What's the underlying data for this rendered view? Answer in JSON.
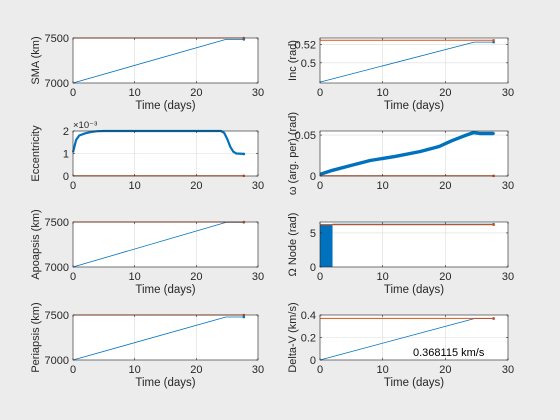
{
  "colors": {
    "figure_bg": "#ececec",
    "axes_bg": "#ffffff",
    "series_blue": "#0072bd",
    "limit_red": "#d95319",
    "grid": "#dcdcdc",
    "axis_line": "#262626"
  },
  "chart_data": [
    {
      "id": "sma",
      "type": "line",
      "xlabel": "Time (days)",
      "ylabel": "SMA (km)",
      "xlim": [
        0,
        30
      ],
      "ylim": [
        7000,
        7500
      ],
      "xticks": [
        0,
        10,
        20,
        30
      ],
      "yticks": [
        7000,
        7500
      ],
      "xtick_labels": [
        "0",
        "10",
        "20",
        "30"
      ],
      "ytick_labels": [
        "7000",
        "7500"
      ],
      "grid": true,
      "series": [
        {
          "style": "line",
          "color": "#0072bd",
          "x": [
            0,
            24.8,
            27.7
          ],
          "y": [
            7000,
            7485,
            7485
          ]
        },
        {
          "style": "hline",
          "color": "#d95319",
          "x": [
            0,
            27.7
          ],
          "y": [
            7500,
            7500
          ]
        }
      ]
    },
    {
      "id": "inc",
      "type": "line",
      "xlabel": "Time (days)",
      "ylabel": "Inc (rad)",
      "xlim": [
        0,
        30
      ],
      "ylim": [
        0.478,
        0.527
      ],
      "xticks": [
        0,
        10,
        20,
        30
      ],
      "yticks": [
        0.5,
        0.52
      ],
      "xtick_labels": [
        "0",
        "10",
        "20",
        "30"
      ],
      "ytick_labels": [
        "0.5",
        "0.52"
      ],
      "grid": true,
      "series": [
        {
          "style": "line",
          "color": "#0072bd",
          "x": [
            0,
            24.6,
            27.7
          ],
          "y": [
            0.479,
            0.5225,
            0.5225
          ]
        },
        {
          "style": "hline",
          "color": "#d95319",
          "x": [
            0,
            27.7
          ],
          "y": [
            0.5245,
            0.5245
          ]
        }
      ]
    },
    {
      "id": "ecc",
      "type": "line",
      "xlabel": "",
      "ylabel": "Eccentricity",
      "exponent_label": "×10⁻³",
      "xlim": [
        0,
        30
      ],
      "ylim": [
        0,
        0.002
      ],
      "xticks": [
        0,
        10,
        20,
        30
      ],
      "yticks": [
        0,
        0.001,
        0.002
      ],
      "xtick_labels": [
        "0",
        "10",
        "20",
        "30"
      ],
      "ytick_labels": [
        "0",
        "1",
        "2"
      ],
      "grid": true,
      "series": [
        {
          "style": "line",
          "color": "#0072bd",
          "width": 2.2,
          "x": [
            0,
            0.5,
            1,
            2,
            3,
            4,
            5,
            8,
            12,
            16,
            20,
            24,
            24.5,
            25,
            25.5,
            26,
            26.5,
            27.7
          ],
          "y": [
            0.00105,
            0.0016,
            0.0018,
            0.0019,
            0.00196,
            0.00199,
            0.002,
            0.002,
            0.002,
            0.002,
            0.002,
            0.002,
            0.00192,
            0.00165,
            0.0013,
            0.00108,
            0.001,
            0.00098
          ]
        },
        {
          "style": "hline",
          "color": "#d95319",
          "x": [
            0,
            27.7
          ],
          "y": [
            1e-05,
            1e-05
          ]
        }
      ]
    },
    {
      "id": "argper",
      "type": "line",
      "xlabel": "",
      "ylabel": "ω (arg. per) (rad)",
      "xlim": [
        0,
        30
      ],
      "ylim": [
        0,
        0.055
      ],
      "xticks": [
        0,
        10,
        20,
        30
      ],
      "yticks": [
        0,
        0.05
      ],
      "xtick_labels": [
        "0",
        "10",
        "20",
        "30"
      ],
      "ytick_labels": [
        "0",
        "0.05"
      ],
      "grid": true,
      "series": [
        {
          "style": "line",
          "color": "#0072bd",
          "width": 3.4,
          "x": [
            0,
            2,
            5,
            8,
            12,
            16,
            19,
            21,
            23,
            24.5,
            25.5,
            27.7
          ],
          "y": [
            0.002,
            0.007,
            0.013,
            0.019,
            0.024,
            0.03,
            0.036,
            0.043,
            0.049,
            0.053,
            0.052,
            0.052
          ]
        },
        {
          "style": "hline",
          "color": "#d95319",
          "x": [
            0,
            27.7
          ],
          "y": [
            0.0002,
            0.0002
          ]
        }
      ]
    },
    {
      "id": "apo",
      "type": "line",
      "xlabel": "Time (days)",
      "ylabel": "Apoapsis (km)",
      "xlim": [
        0,
        30
      ],
      "ylim": [
        7000,
        7500
      ],
      "xticks": [
        0,
        10,
        20,
        30
      ],
      "yticks": [
        7000,
        7500
      ],
      "xtick_labels": [
        "0",
        "10",
        "20",
        "30"
      ],
      "ytick_labels": [
        "7000",
        "7500"
      ],
      "grid": true,
      "series": [
        {
          "style": "line",
          "color": "#0072bd",
          "x": [
            0,
            24.8,
            27.7
          ],
          "y": [
            7000,
            7495,
            7497
          ]
        },
        {
          "style": "hline",
          "color": "#d95319",
          "x": [
            0,
            27.7
          ],
          "y": [
            7500,
            7500
          ]
        }
      ]
    },
    {
      "id": "node",
      "type": "line",
      "xlabel": "Time (days)",
      "ylabel": "Ω Node (rad)",
      "xlim": [
        0,
        30
      ],
      "ylim": [
        0,
        6.6
      ],
      "xticks": [
        0,
        10,
        20,
        30
      ],
      "yticks": [
        0,
        5
      ],
      "xtick_labels": [
        "0",
        "10",
        "20",
        "30"
      ],
      "ytick_labels": [
        "0",
        "5"
      ],
      "grid": true,
      "series": [
        {
          "style": "band",
          "color": "#0072bd",
          "x": [
            0,
            2
          ],
          "y": [
            0,
            6.28
          ]
        },
        {
          "style": "line",
          "color": "#0072bd",
          "x": [
            2,
            27.7
          ],
          "y": [
            6.28,
            6.28
          ]
        },
        {
          "style": "hline",
          "color": "#d95319",
          "x": [
            0,
            27.7
          ],
          "y": [
            6.2,
            6.2
          ]
        }
      ]
    },
    {
      "id": "peri",
      "type": "line",
      "xlabel": "Time (days)",
      "ylabel": "Periapsis (km)",
      "xlim": [
        0,
        30
      ],
      "ylim": [
        7000,
        7500
      ],
      "xticks": [
        0,
        10,
        20,
        30
      ],
      "yticks": [
        7000,
        7500
      ],
      "xtick_labels": [
        "0",
        "10",
        "20",
        "30"
      ],
      "ytick_labels": [
        "7000",
        "7500"
      ],
      "grid": true,
      "series": [
        {
          "style": "line",
          "color": "#0072bd",
          "x": [
            0,
            24.8,
            27.7
          ],
          "y": [
            7000,
            7478,
            7478
          ]
        },
        {
          "style": "hline",
          "color": "#d95319",
          "x": [
            0,
            27.7
          ],
          "y": [
            7500,
            7500
          ]
        }
      ]
    },
    {
      "id": "dv",
      "type": "line",
      "xlabel": "Time (days)",
      "ylabel": "Delta-V (km/s)",
      "xlim": [
        0,
        30
      ],
      "ylim": [
        0,
        0.4
      ],
      "xticks": [
        0,
        10,
        20,
        30
      ],
      "yticks": [
        0,
        0.2,
        0.4
      ],
      "xtick_labels": [
        "0",
        "10",
        "20",
        "30"
      ],
      "ytick_labels": [
        "0",
        "0.2",
        "0.4"
      ],
      "grid": true,
      "annotation": "0.368115 km/s",
      "series": [
        {
          "style": "line",
          "color": "#0072bd",
          "x": [
            0,
            24.6,
            27.7
          ],
          "y": [
            0,
            0.368,
            0.368
          ]
        },
        {
          "style": "hline",
          "color": "#d95319",
          "x": [
            0,
            27.7
          ],
          "y": [
            0.37,
            0.37
          ]
        }
      ]
    }
  ]
}
